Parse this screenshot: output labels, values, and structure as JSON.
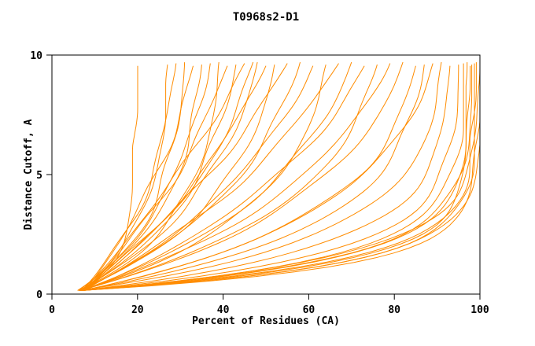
{
  "chart_data": {
    "type": "line",
    "title": "T0968s2-D1",
    "xlabel": "Percent of Residues (CA)",
    "ylabel": "Distance Cutoff, A",
    "xlim": [
      0,
      100
    ],
    "ylim": [
      0,
      10
    ],
    "x_ticks": [
      0,
      20,
      40,
      60,
      80,
      100
    ],
    "y_ticks": [
      0,
      5,
      10
    ],
    "grid": false,
    "legend": "none",
    "line_color": "#ff8c00",
    "axis_color": "#000000",
    "background_color": "#ffffff",
    "y_top_of_curves": 9.6,
    "series": [
      {
        "x_start": 6.5,
        "x_end": 19.5,
        "curvature": 7.0
      },
      {
        "x_start": 6.0,
        "x_end": 27.0,
        "curvature": 3.5
      },
      {
        "x_start": 7.0,
        "x_end": 29.0,
        "curvature": 2.0
      },
      {
        "x_start": 6.2,
        "x_end": 31.0,
        "curvature": 3.0
      },
      {
        "x_start": 7.5,
        "x_end": 33.0,
        "curvature": 1.2
      },
      {
        "x_start": 6.8,
        "x_end": 35.0,
        "curvature": 2.6
      },
      {
        "x_start": 7.2,
        "x_end": 37.0,
        "curvature": 1.8
      },
      {
        "x_start": 6.4,
        "x_end": 39.0,
        "curvature": 3.2
      },
      {
        "x_start": 7.8,
        "x_end": 41.0,
        "curvature": 1.0
      },
      {
        "x_start": 6.6,
        "x_end": 43.0,
        "curvature": 2.2
      },
      {
        "x_start": 7.0,
        "x_end": 45.0,
        "curvature": 0.6
      },
      {
        "x_start": 6.9,
        "x_end": 47.0,
        "curvature": 1.6
      },
      {
        "x_start": 7.4,
        "x_end": 50.0,
        "curvature": 1.0
      },
      {
        "x_start": 6.3,
        "x_end": 52.0,
        "curvature": 2.4
      },
      {
        "x_start": 7.6,
        "x_end": 55.0,
        "curvature": 0.8
      },
      {
        "x_start": 6.7,
        "x_end": 58.0,
        "curvature": 1.9
      },
      {
        "x_start": 7.1,
        "x_end": 61.0,
        "curvature": 1.4
      },
      {
        "x_start": 6.5,
        "x_end": 64.0,
        "curvature": 2.8
      },
      {
        "x_start": 7.3,
        "x_end": 67.0,
        "curvature": 1.1
      },
      {
        "x_start": 6.8,
        "x_end": 70.0,
        "curvature": 2.0
      },
      {
        "x_start": 7.5,
        "x_end": 73.0,
        "curvature": 1.5
      },
      {
        "x_start": 6.2,
        "x_end": 76.0,
        "curvature": 2.6
      },
      {
        "x_start": 7.0,
        "x_end": 79.0,
        "curvature": 1.8
      },
      {
        "x_start": 6.6,
        "x_end": 82.0,
        "curvature": 2.3
      },
      {
        "x_start": 7.2,
        "x_end": 85.0,
        "curvature": 3.0
      },
      {
        "x_start": 6.9,
        "x_end": 87.0,
        "curvature": 3.6
      },
      {
        "x_start": 7.4,
        "x_end": 89.0,
        "curvature": 2.7
      },
      {
        "x_start": 6.4,
        "x_end": 91.0,
        "curvature": 4.2
      },
      {
        "x_start": 7.1,
        "x_end": 93.0,
        "curvature": 5.0
      },
      {
        "x_start": 6.7,
        "x_end": 95.0,
        "curvature": 6.0
      },
      {
        "x_start": 7.3,
        "x_end": 96.0,
        "curvature": 6.8
      },
      {
        "x_start": 6.5,
        "x_end": 97.0,
        "curvature": 7.5
      },
      {
        "x_start": 7.0,
        "x_end": 97.5,
        "curvature": 8.2
      },
      {
        "x_start": 6.8,
        "x_end": 98.0,
        "curvature": 7.0
      },
      {
        "x_start": 7.2,
        "x_end": 98.5,
        "curvature": 8.8
      },
      {
        "x_start": 6.6,
        "x_end": 99.0,
        "curvature": 7.8
      },
      {
        "x_start": 7.0,
        "x_end": 99.5,
        "curvature": 9.2
      },
      {
        "x_start": 6.9,
        "x_end": 100.0,
        "curvature": 8.5
      },
      {
        "x_start": 7.4,
        "x_end": 100.0,
        "curvature": 6.5
      },
      {
        "x_start": 6.3,
        "x_end": 48.0,
        "curvature": 2.0
      }
    ]
  }
}
